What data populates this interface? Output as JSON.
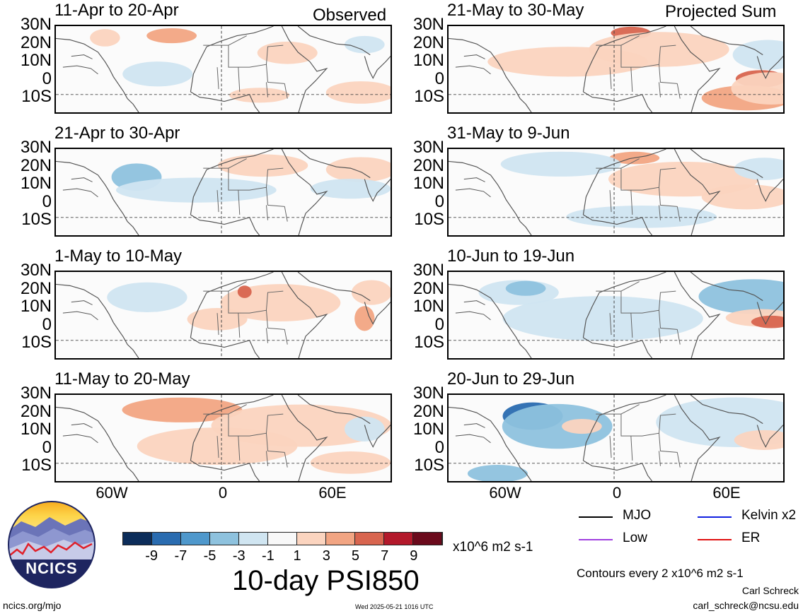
{
  "columns": {
    "left_tag": "Observed",
    "right_tag": "Projected Sum"
  },
  "panels_left": [
    {
      "title": "11-Apr to 20-Apr"
    },
    {
      "title": "21-Apr to 30-Apr"
    },
    {
      "title": "1-May to 10-May"
    },
    {
      "title": "11-May to 20-May"
    }
  ],
  "panels_right": [
    {
      "title": "21-May to 30-May"
    },
    {
      "title": "31-May to 9-Jun"
    },
    {
      "title": "10-Jun to 19-Jun"
    },
    {
      "title": "20-Jun to 29-Jun"
    }
  ],
  "lat_labels": [
    "30N",
    "20N",
    "10N",
    "0",
    "10S"
  ],
  "lon_labels": [
    "60W",
    "0",
    "60E"
  ],
  "colorbar": {
    "ticks": [
      "-9",
      "-7",
      "-5",
      "-3",
      "-1",
      "1",
      "3",
      "5",
      "7",
      "9"
    ],
    "colors": [
      "#0c2d5a",
      "#2a6cb0",
      "#4f98cc",
      "#8ec2de",
      "#d0e5f1",
      "#f8f8f8",
      "#fbd4bf",
      "#f2a583",
      "#d8654f",
      "#b3192b",
      "#6b0a1c"
    ],
    "units": "x10^6 m2 s-1"
  },
  "main_title": "10-day PSI850",
  "legend": [
    {
      "label": "MJO",
      "color": "#000000"
    },
    {
      "label": "Kelvin x2",
      "color": "#1020e0"
    },
    {
      "label": "Low",
      "color": "#a040e0"
    },
    {
      "label": "ER",
      "color": "#e01010"
    }
  ],
  "contour_note": "Contours every 2 x10^6 m2 s-1",
  "author": "Carl Schreck",
  "email": "carl_schreck@ncsu.edu",
  "website": "ncics.org/mjo",
  "timestamp": "Wed 2025-05-21 1016 UTC",
  "logo_text": "NCICS"
}
